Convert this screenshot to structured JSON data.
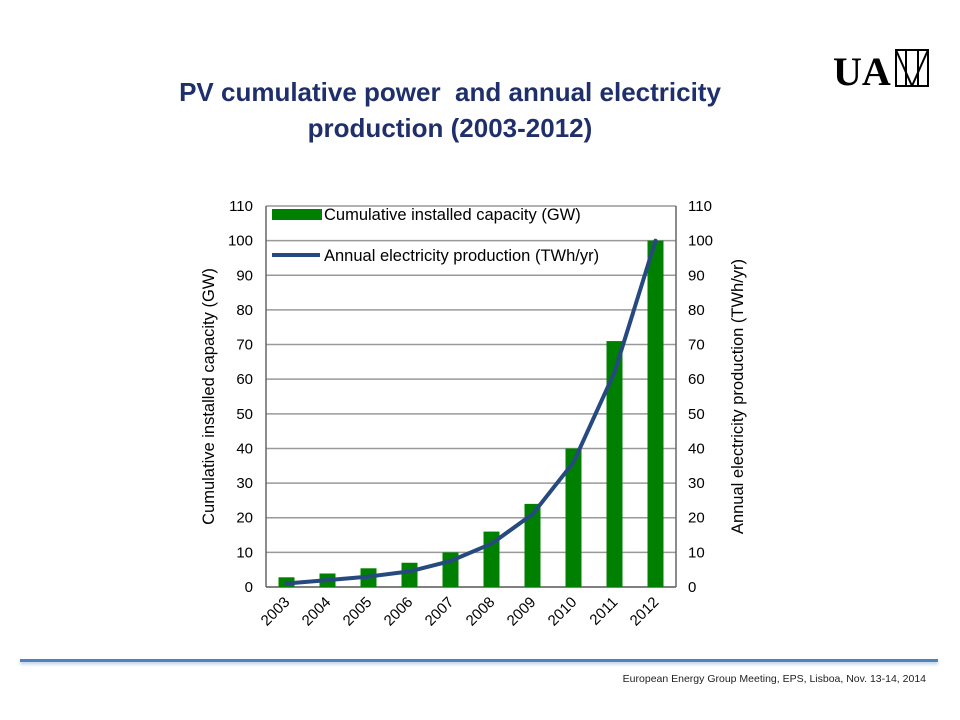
{
  "slide": {
    "title_line1": "PV cumulative power  and annual electricity",
    "title_line2": "production (2003-2012)",
    "footer": "European Energy Group Meeting, EPS, Lisboa, Nov. 13-14, 2014",
    "logo_text": "UAM"
  },
  "colors": {
    "title": "#1f2f6b",
    "bar": "#008000",
    "line": "#264a7f",
    "grid": "#999999",
    "footer_rule": "#4f81bd"
  },
  "chart_data": {
    "type": "bar",
    "categories": [
      "2003",
      "2004",
      "2005",
      "2006",
      "2007",
      "2008",
      "2009",
      "2010",
      "2011",
      "2012"
    ],
    "series": [
      {
        "name": "Cumulative installed capacity (GW)",
        "type": "bar",
        "axis": "left",
        "values": [
          2.8,
          3.9,
          5.4,
          7,
          10,
          16,
          24,
          40,
          71,
          100
        ]
      },
      {
        "name": "Annual electricity production (TWh/yr)",
        "type": "line",
        "axis": "right",
        "values": [
          1,
          2,
          3,
          4.5,
          7.5,
          12.5,
          21,
          36,
          62,
          100
        ]
      }
    ],
    "ylabel": "Cumulative installed capacity (GW)",
    "y2label": "Annual electricity production (TWh/yr)",
    "ylim": [
      0,
      110
    ],
    "y2lim": [
      0,
      110
    ],
    "yticks": [
      0,
      10,
      20,
      30,
      40,
      50,
      60,
      70,
      80,
      90,
      100,
      110
    ],
    "grid": true,
    "legend_position": "top-left"
  }
}
